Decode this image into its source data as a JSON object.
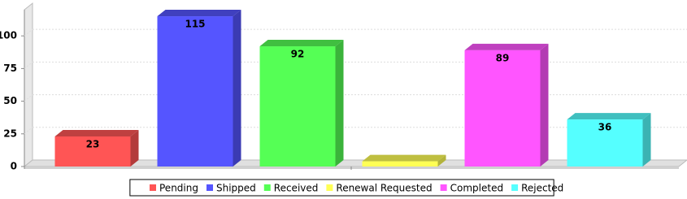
{
  "chart_data": {
    "type": "bar3d",
    "categories": [
      "Pending",
      "Shipped",
      "Received",
      "Renewal Requested",
      "Completed",
      "Rejected"
    ],
    "values": [
      23,
      115,
      92,
      4,
      89,
      36
    ],
    "value_labels": [
      "23",
      "115",
      "92",
      null,
      "89",
      "36"
    ],
    "colors": [
      "#ff5555",
      "#5555ff",
      "#55ff55",
      "#ffff55",
      "#ff55ff",
      "#55ffff"
    ],
    "ylim": [
      0,
      120
    ],
    "yticks": [
      0,
      25,
      50,
      75,
      100
    ],
    "grid": true,
    "legend": "bottom"
  }
}
